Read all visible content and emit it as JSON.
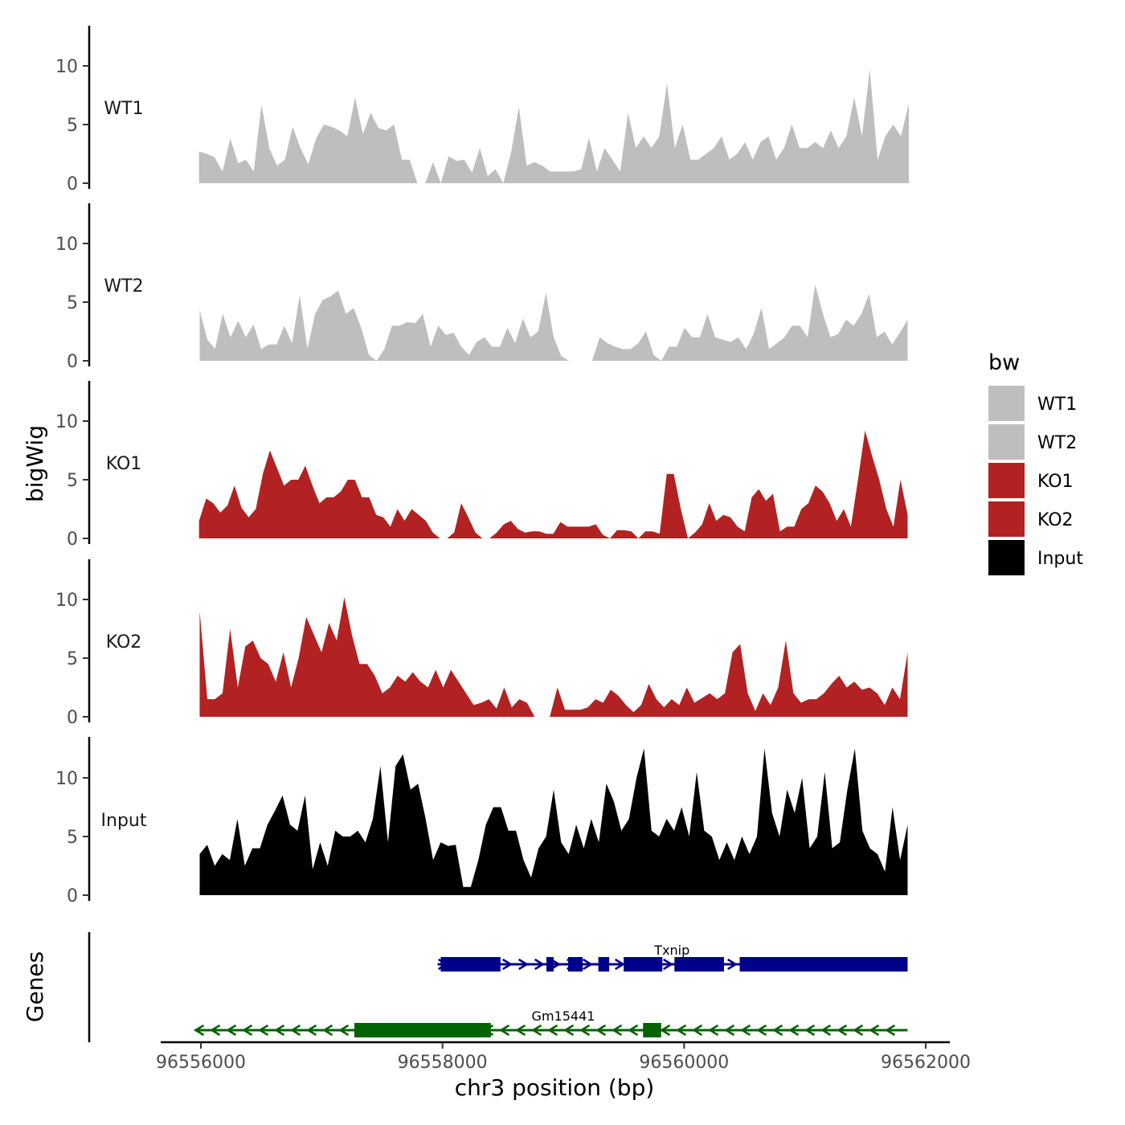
{
  "chart_data": {
    "type": "area",
    "ylabel": "bigWig",
    "xlabel": "chr3 position (bp)",
    "genes_label": "Genes",
    "xlim": [
      96555900,
      96561900
    ],
    "ylim": [
      0,
      13
    ],
    "x_ticks": [
      96556000,
      96558000,
      96560000,
      96562000
    ],
    "x_tick_labels": [
      "96556000",
      "96558000",
      "96560000",
      "96562000"
    ],
    "y_ticks": [
      0,
      5,
      10
    ],
    "y_tick_labels": [
      "0",
      "5",
      "10"
    ],
    "legend": {
      "title": "bw",
      "entries": [
        {
          "label": "WT1",
          "color": "#bebebe"
        },
        {
          "label": "WT2",
          "color": "#bebebe"
        },
        {
          "label": "KO1",
          "color": "#b22222"
        },
        {
          "label": "KO2",
          "color": "#b22222"
        },
        {
          "label": "Input",
          "color": "#000000"
        }
      ]
    },
    "series": [
      {
        "name": "WT1",
        "color": "#bebebe",
        "x_start": 96555985,
        "x_end": 96561860,
        "values": [
          2.7,
          2.5,
          2.2,
          1.0,
          3.8,
          1.7,
          2.0,
          1.0,
          6.7,
          3.0,
          1.5,
          2.0,
          4.8,
          3.0,
          1.6,
          3.8,
          5.0,
          4.8,
          4.5,
          4.0,
          7.3,
          4.2,
          6.0,
          4.7,
          4.5,
          5.0,
          2.0,
          2.0,
          0.0,
          0.0,
          1.8,
          0.0,
          2.3,
          1.9,
          2.0,
          0.9,
          3.0,
          0.6,
          1.2,
          0.0,
          2.6,
          6.5,
          1.5,
          1.8,
          1.5,
          1.0,
          1.0,
          1.0,
          1.0,
          1.2,
          3.9,
          1.0,
          3.0,
          2.0,
          1.0,
          6.0,
          3.0,
          4.0,
          3.0,
          4.0,
          8.5,
          3.0,
          5.0,
          2.0,
          2.0,
          2.5,
          3.0,
          4.0,
          2.0,
          2.5,
          3.5,
          2.0,
          3.5,
          4.0,
          2.0,
          3.0,
          5.0,
          3.0,
          3.0,
          3.5,
          3.0,
          4.5,
          3.0,
          4.0,
          7.3,
          4.0,
          9.7,
          2.0,
          4.0,
          5.0,
          4.0,
          6.8
        ]
      },
      {
        "name": "WT2",
        "color": "#bebebe",
        "x_start": 96555990,
        "x_end": 96561850,
        "values": [
          4.3,
          1.8,
          1.0,
          4.0,
          2.0,
          3.4,
          2.0,
          3.1,
          1.0,
          1.4,
          1.4,
          3.0,
          1.5,
          5.6,
          1.0,
          4.0,
          5.2,
          5.5,
          6.0,
          4.0,
          4.5,
          2.8,
          0.5,
          0.0,
          1.0,
          3.0,
          3.0,
          3.3,
          3.2,
          4.0,
          1.2,
          3.0,
          2.2,
          2.4,
          1.2,
          0.5,
          1.6,
          2.0,
          1.2,
          1.2,
          2.8,
          1.5,
          3.6,
          2.0,
          2.5,
          5.8,
          2.0,
          0.4,
          0.0,
          0.0,
          0.0,
          0.0,
          2.0,
          1.5,
          1.2,
          1.0,
          1.0,
          1.5,
          2.5,
          0.5,
          0.0,
          1.2,
          1.2,
          2.8,
          2.0,
          2.0,
          4.0,
          2.0,
          1.8,
          1.6,
          2.0,
          1.0,
          2.3,
          4.5,
          1.0,
          1.5,
          2.0,
          3.0,
          3.0,
          2.0,
          6.5,
          4.0,
          2.0,
          2.3,
          3.5,
          3.0,
          4.0,
          5.7,
          2.0,
          2.5,
          1.4,
          2.4,
          3.5
        ]
      },
      {
        "name": "KO1",
        "color": "#b22222",
        "x_start": 96555985,
        "x_end": 96561850,
        "values": [
          1.5,
          3.4,
          3.0,
          2.2,
          2.8,
          4.5,
          2.6,
          1.8,
          2.5,
          5.5,
          7.5,
          6.0,
          4.5,
          5.0,
          5.0,
          6.2,
          4.5,
          3.0,
          3.5,
          3.5,
          4.0,
          5.0,
          5.0,
          3.5,
          3.5,
          2.0,
          1.8,
          1.0,
          2.5,
          1.5,
          2.5,
          2.0,
          1.5,
          0.5,
          0.0,
          0.0,
          0.5,
          3.0,
          1.8,
          0.5,
          0.0,
          0.0,
          0.5,
          1.2,
          1.5,
          0.8,
          0.5,
          0.6,
          0.6,
          0.4,
          0.4,
          1.4,
          1.0,
          1.0,
          1.0,
          1.0,
          1.2,
          0.3,
          0.0,
          0.7,
          0.7,
          0.6,
          0.0,
          0.6,
          0.6,
          0.4,
          5.5,
          5.5,
          2.5,
          0.0,
          0.5,
          1.2,
          3.0,
          1.5,
          2.0,
          1.8,
          1.0,
          0.6,
          3.5,
          4.2,
          3.2,
          3.8,
          0.6,
          1.0,
          1.0,
          2.5,
          3.0,
          4.5,
          4.0,
          3.0,
          1.5,
          2.5,
          1.0,
          5.0,
          9.2,
          7.0,
          5.0,
          2.5,
          1.0,
          5.0,
          2.0
        ]
      },
      {
        "name": "KO2",
        "color": "#b22222",
        "x_start": 96555990,
        "x_end": 96561850,
        "values": [
          9.0,
          1.5,
          1.5,
          2.0,
          7.5,
          2.5,
          6.0,
          6.5,
          5.0,
          4.5,
          3.0,
          5.5,
          2.5,
          5.0,
          8.5,
          7.0,
          5.5,
          8.0,
          6.5,
          10.2,
          7.0,
          4.5,
          4.5,
          3.5,
          2.0,
          2.5,
          3.5,
          3.0,
          3.8,
          3.0,
          2.5,
          4.0,
          2.5,
          4.0,
          3.0,
          2.0,
          1.0,
          1.2,
          1.5,
          0.7,
          2.5,
          0.8,
          1.5,
          1.2,
          0.0,
          0.0,
          0.0,
          2.5,
          0.6,
          0.6,
          0.6,
          0.8,
          1.5,
          1.2,
          2.3,
          1.8,
          1.0,
          0.4,
          1.0,
          2.8,
          1.5,
          0.8,
          1.5,
          1.0,
          2.5,
          1.2,
          1.6,
          2.0,
          1.5,
          2.0,
          5.5,
          6.2,
          2.0,
          0.5,
          2.0,
          1.0,
          2.5,
          6.5,
          2.0,
          1.2,
          1.5,
          1.5,
          2.0,
          2.8,
          3.5,
          2.5,
          3.0,
          2.3,
          2.5,
          2.0,
          1.0,
          2.5,
          1.5,
          5.5
        ]
      },
      {
        "name": "Input",
        "color": "#000000",
        "x_start": 96555990,
        "x_end": 96561850,
        "values": [
          3.5,
          4.3,
          2.5,
          3.5,
          3.0,
          6.5,
          2.5,
          4.0,
          4.0,
          6.0,
          7.2,
          8.5,
          6.0,
          5.5,
          8.5,
          2.2,
          4.5,
          2.5,
          5.5,
          5.0,
          5.0,
          5.5,
          4.5,
          6.5,
          11.0,
          4.5,
          11.0,
          12.0,
          9.0,
          9.5,
          6.5,
          3.0,
          4.5,
          4.2,
          4.3,
          0.7,
          0.7,
          3.0,
          6.0,
          7.5,
          7.5,
          5.5,
          5.5,
          3.0,
          1.5,
          4.0,
          5.0,
          9.0,
          4.5,
          3.5,
          6.0,
          4.0,
          6.5,
          4.5,
          9.5,
          8.0,
          5.5,
          6.5,
          10.0,
          12.5,
          5.5,
          5.0,
          6.5,
          5.5,
          7.5,
          5.0,
          10.5,
          5.5,
          5.0,
          3.0,
          4.5,
          3.0,
          5.0,
          3.5,
          5.0,
          12.5,
          7.0,
          5.0,
          9.0,
          7.0,
          10.0,
          4.0,
          5.0,
          10.5,
          4.0,
          4.5,
          9.0,
          12.5,
          5.5,
          4.0,
          3.5,
          2.0,
          7.5,
          3.0,
          6.0
        ]
      }
    ],
    "genes": [
      {
        "name": "Txnip",
        "strand": "+",
        "color": "#00008b",
        "start": 96557960,
        "end": 96561850,
        "exons": [
          [
            96557985,
            96558480
          ],
          [
            96558860,
            96558920
          ],
          [
            96559040,
            96559160
          ],
          [
            96559290,
            96559380
          ],
          [
            96559500,
            96559820
          ],
          [
            96559920,
            96560330
          ],
          [
            96560460,
            96561850
          ]
        ]
      },
      {
        "name": "Gm15441",
        "strand": "-",
        "color": "#006400",
        "start": 96555950,
        "end": 96561850,
        "exons": [
          [
            96557270,
            96558400
          ],
          [
            96559660,
            96559810
          ]
        ]
      }
    ]
  }
}
